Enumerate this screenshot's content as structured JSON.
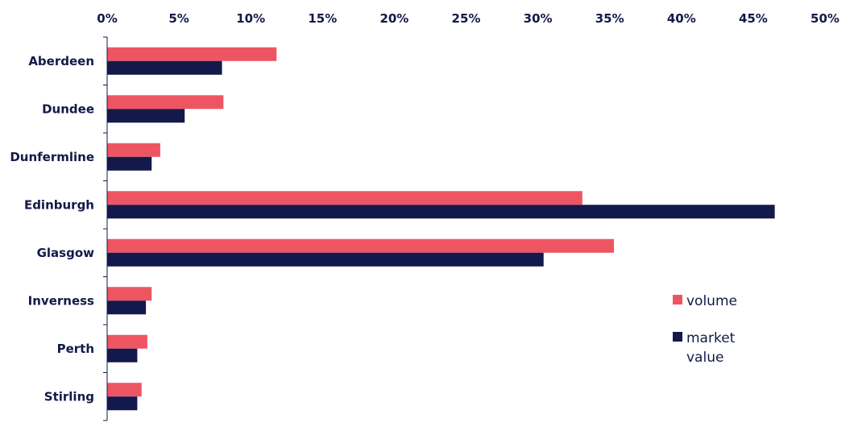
{
  "chart_data": {
    "type": "bar",
    "orientation": "horizontal",
    "title": "",
    "xlabel": "",
    "ylabel": "",
    "categories": [
      "Aberdeen",
      "Dundee",
      "Dunfermline",
      "Edinburgh",
      "Glasgow",
      "Inverness",
      "Perth",
      "Stirling"
    ],
    "series": [
      {
        "name": "volume",
        "color": "#ee5563",
        "values": [
          11.8,
          8.1,
          3.7,
          33.1,
          35.3,
          3.1,
          2.8,
          2.4
        ]
      },
      {
        "name": "market value",
        "color": "#13194a",
        "values": [
          8.0,
          5.4,
          3.1,
          46.5,
          30.4,
          2.7,
          2.1,
          2.1
        ]
      }
    ],
    "xlim": [
      0,
      50
    ],
    "xticks": [
      "0%",
      "5%",
      "10%",
      "15%",
      "20%",
      "25%",
      "30%",
      "35%",
      "40%",
      "45%",
      "50%"
    ],
    "xtick_values": [
      0,
      5,
      10,
      15,
      20,
      25,
      30,
      35,
      40,
      45,
      50
    ],
    "x_axis_position": "top",
    "grid": false,
    "legend": {
      "placement": "right",
      "items": [
        {
          "label_lines": [
            "volume"
          ]
        },
        {
          "label_lines": [
            "market",
            "value"
          ]
        }
      ]
    }
  }
}
